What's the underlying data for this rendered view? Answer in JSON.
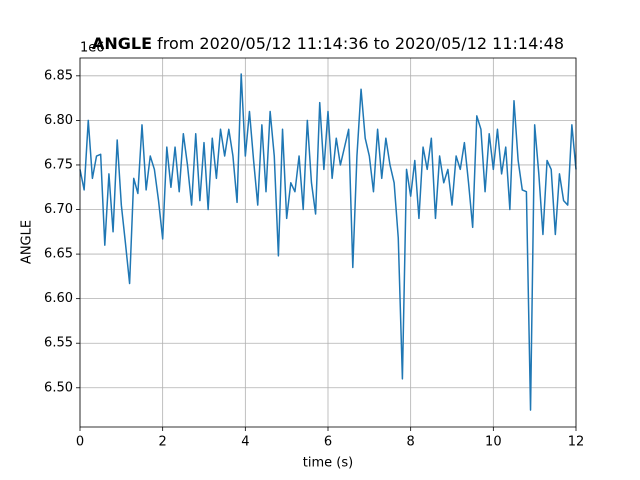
{
  "chart_data": {
    "type": "line",
    "title_bold": "ANGLE",
    "title": "from 2020/05/12 11:14:36 to 2020/05/12 11:14:48",
    "x_label": "time (s)",
    "y_label": "ANGLE",
    "y_offset": "1e6",
    "grid": true,
    "xlim": [
      0,
      12
    ],
    "xticks": [
      0,
      2,
      4,
      6,
      8,
      10,
      12
    ],
    "ylim": [
      6.456,
      6.87
    ],
    "yticks": [
      {
        "value": 6.5,
        "label": "6.50"
      },
      6.55,
      {
        "value": 6.6,
        "label": "6.60"
      },
      6.65,
      {
        "value": 6.7,
        "label": "6.70"
      },
      6.75,
      {
        "value": 6.8,
        "label": "6.80"
      },
      6.85
    ],
    "x": [
      0,
      0.1,
      0.2,
      0.3,
      0.4,
      0.5,
      0.6,
      0.7,
      0.8,
      0.9,
      1,
      1.1,
      1.2,
      1.3,
      1.4,
      1.5,
      1.6,
      1.7,
      1.8,
      1.9,
      2,
      2.1,
      2.2,
      2.3,
      2.4,
      2.5,
      2.6,
      2.7,
      2.8,
      2.9,
      3,
      3.1,
      3.2,
      3.3,
      3.4,
      3.5,
      3.6,
      3.7,
      3.8,
      3.9,
      4,
      4.1,
      4.2,
      4.3,
      4.4,
      4.5,
      4.6,
      4.7,
      4.8,
      4.9,
      5,
      5.1,
      5.2,
      5.3,
      5.4,
      5.5,
      5.6,
      5.7,
      5.8,
      5.9,
      6,
      6.1,
      6.2,
      6.3,
      6.4,
      6.5,
      6.6,
      6.7,
      6.8,
      6.9,
      7,
      7.1,
      7.2,
      7.3,
      7.4,
      7.5,
      7.6,
      7.7,
      7.8,
      7.9,
      8,
      8.1,
      8.2,
      8.3,
      8.4,
      8.5,
      8.6,
      8.7,
      8.8,
      8.9,
      9,
      9.1,
      9.2,
      9.3,
      9.4,
      9.5,
      9.6,
      9.7,
      9.8,
      9.9,
      10,
      10.1,
      10.2,
      10.3,
      10.4,
      10.5,
      10.6,
      10.7,
      10.8,
      10.9,
      11,
      11.1,
      11.2,
      11.3,
      11.4,
      11.5,
      11.6,
      11.7,
      11.8,
      11.9,
      12
    ],
    "series": [
      {
        "color": "#1f77b4",
        "values": [
          6.745,
          6.722,
          6.8,
          6.735,
          6.76,
          6.762,
          6.66,
          6.74,
          6.675,
          6.778,
          6.705,
          6.662,
          6.617,
          6.735,
          6.718,
          6.795,
          6.722,
          6.76,
          6.745,
          6.71,
          6.667,
          6.77,
          6.725,
          6.77,
          6.72,
          6.785,
          6.75,
          6.705,
          6.785,
          6.71,
          6.775,
          6.7,
          6.78,
          6.735,
          6.79,
          6.76,
          6.79,
          6.76,
          6.708,
          6.852,
          6.76,
          6.81,
          6.755,
          6.705,
          6.795,
          6.72,
          6.81,
          6.76,
          6.648,
          6.79,
          6.69,
          6.73,
          6.72,
          6.76,
          6.7,
          6.8,
          6.73,
          6.695,
          6.82,
          6.745,
          6.81,
          6.735,
          6.78,
          6.75,
          6.77,
          6.79,
          6.635,
          6.76,
          6.835,
          6.78,
          6.76,
          6.72,
          6.79,
          6.735,
          6.78,
          6.75,
          6.73,
          6.668,
          6.51,
          6.745,
          6.715,
          6.755,
          6.69,
          6.77,
          6.745,
          6.78,
          6.69,
          6.76,
          6.73,
          6.745,
          6.705,
          6.76,
          6.745,
          6.775,
          6.73,
          6.68,
          6.805,
          6.79,
          6.72,
          6.785,
          6.745,
          6.79,
          6.74,
          6.77,
          6.7,
          6.822,
          6.755,
          6.722,
          6.72,
          6.475,
          6.795,
          6.74,
          6.672,
          6.755,
          6.745,
          6.672,
          6.74,
          6.71,
          6.705,
          6.795,
          6.745
        ]
      }
    ]
  }
}
